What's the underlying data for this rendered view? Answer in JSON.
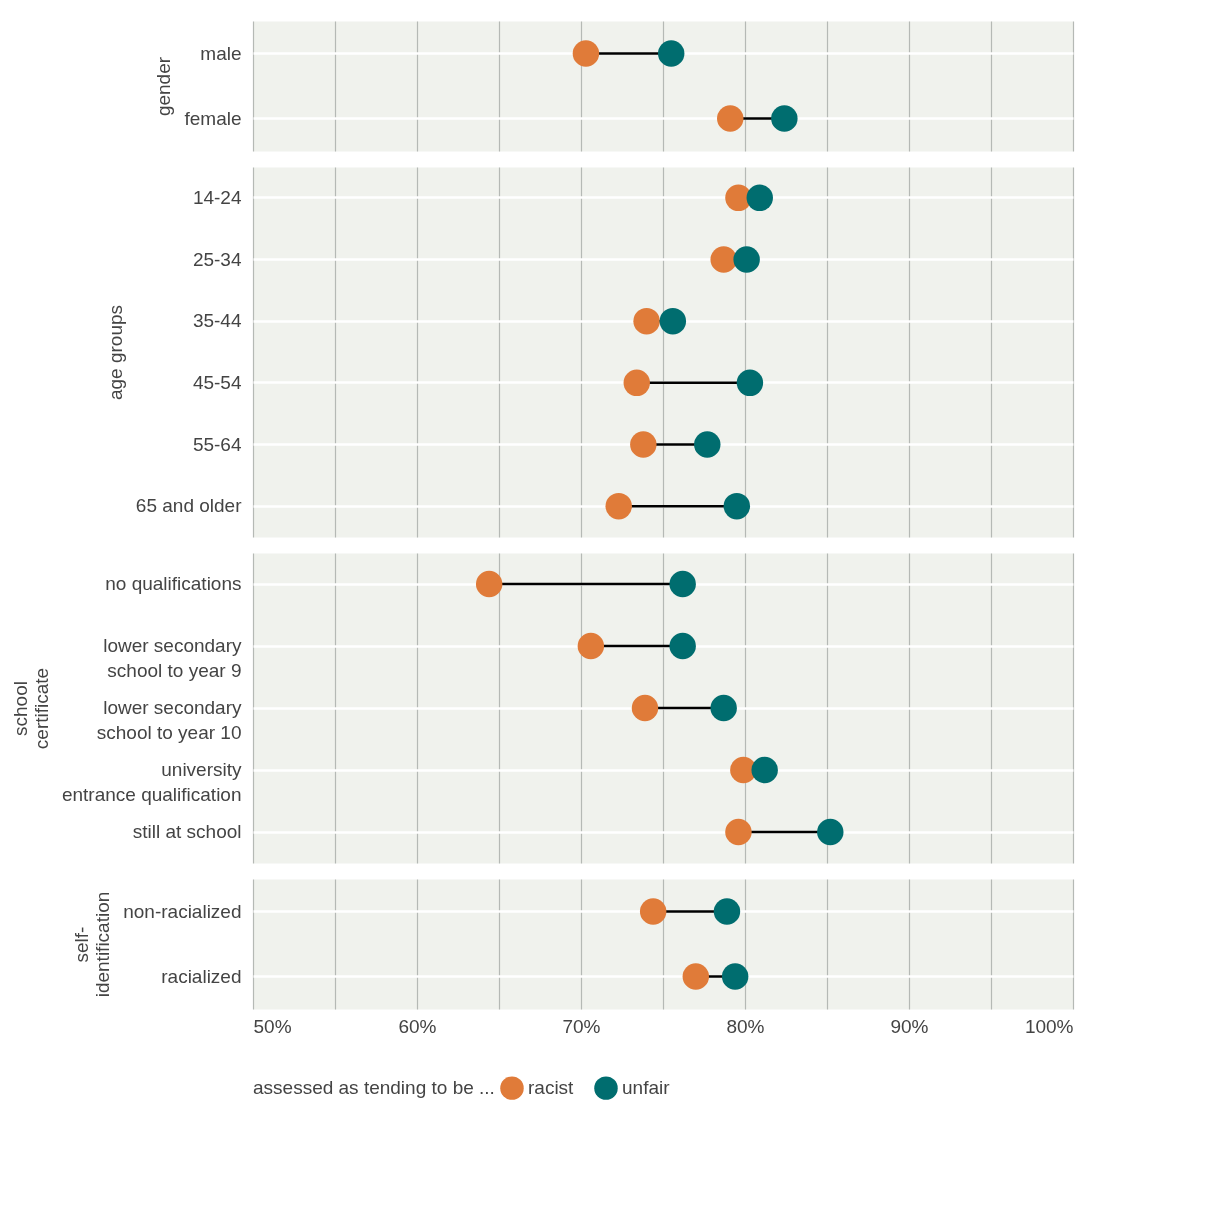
{
  "chart_data": [
    {
      "type": "scatter",
      "orientation": "horizontal",
      "ylabel": "gender",
      "categories": [
        "male",
        "female"
      ],
      "series": [
        {
          "color": "#e07b39",
          "values": [
            70.3,
            79.1
          ]
        },
        {
          "color": "#006d6f",
          "values": [
            75.5,
            82.4
          ]
        }
      ],
      "xlim": [
        50,
        100
      ],
      "xticks": [
        {
          "value": 50,
          "label": null
        },
        {
          "value": 55,
          "label": null
        },
        {
          "value": 60,
          "label": null
        },
        {
          "value": 65,
          "label": null
        },
        {
          "value": 70,
          "label": null
        },
        {
          "value": 75,
          "label": null
        },
        {
          "value": 80,
          "label": null
        },
        {
          "value": 85,
          "label": null
        },
        {
          "value": 90,
          "label": null
        },
        {
          "value": 95,
          "label": null
        },
        {
          "value": 100,
          "label": null
        }
      ],
      "grid": true,
      "tick_labels": "y",
      "legend": false
    },
    {
      "type": "scatter",
      "orientation": "horizontal",
      "ylabel": "age groups",
      "categories": [
        "14-24",
        "25-34",
        "35-44",
        "45-54",
        "55-64",
        "65 and older"
      ],
      "series": [
        {
          "color": "#e07b39",
          "values": [
            79.6,
            78.7,
            74.0,
            73.4,
            73.8,
            72.3
          ]
        },
        {
          "color": "#006d6f",
          "values": [
            80.9,
            80.1,
            75.6,
            80.3,
            77.7,
            79.5
          ]
        }
      ],
      "xlim": [
        50,
        100
      ],
      "xticks": [
        {
          "value": 50,
          "label": null
        },
        {
          "value": 55,
          "label": null
        },
        {
          "value": 60,
          "label": null
        },
        {
          "value": 65,
          "label": null
        },
        {
          "value": 70,
          "label": null
        },
        {
          "value": 75,
          "label": null
        },
        {
          "value": 80,
          "label": null
        },
        {
          "value": 85,
          "label": null
        },
        {
          "value": 90,
          "label": null
        },
        {
          "value": 95,
          "label": null
        },
        {
          "value": 100,
          "label": null
        }
      ],
      "grid": true,
      "tick_labels": "y",
      "legend": false
    },
    {
      "type": "scatter",
      "orientation": "horizontal",
      "ylabel": "school\ncertificate",
      "categories": [
        "no qualifications",
        "lower secondary\nschool to year 9",
        "lower secondary\nschool to year 10",
        "university\nentrance qualification",
        "still at school"
      ],
      "series": [
        {
          "color": "#e07b39",
          "values": [
            64.4,
            70.6,
            73.9,
            79.9,
            79.6
          ]
        },
        {
          "color": "#006d6f",
          "values": [
            76.2,
            76.2,
            78.7,
            81.2,
            85.2
          ]
        }
      ],
      "xlim": [
        50,
        100
      ],
      "xticks": [
        {
          "value": 50,
          "label": null
        },
        {
          "value": 55,
          "label": null
        },
        {
          "value": 60,
          "label": null
        },
        {
          "value": 65,
          "label": null
        },
        {
          "value": 70,
          "label": null
        },
        {
          "value": 75,
          "label": null
        },
        {
          "value": 80,
          "label": null
        },
        {
          "value": 85,
          "label": null
        },
        {
          "value": 90,
          "label": null
        },
        {
          "value": 95,
          "label": null
        },
        {
          "value": 100,
          "label": null
        }
      ],
      "grid": true,
      "tick_labels": "y",
      "legend": false
    },
    {
      "type": "scatter",
      "orientation": "horizontal",
      "ylabel": "self-\nidentification",
      "categories": [
        "non-racialized",
        "racialized"
      ],
      "series": [
        {
          "name": "racist",
          "color": "#e07b39",
          "values": [
            74.4,
            77.0
          ]
        },
        {
          "name": "unfair",
          "color": "#006d6f",
          "values": [
            78.9,
            79.4
          ]
        }
      ],
      "xlim": [
        50,
        100
      ],
      "xticks": [
        {
          "value": 50,
          "label": "50%"
        },
        {
          "value": 55,
          "label": null
        },
        {
          "value": 60,
          "label": "60%"
        },
        {
          "value": 65,
          "label": null
        },
        {
          "value": 70,
          "label": "70%"
        },
        {
          "value": 75,
          "label": null
        },
        {
          "value": 80,
          "label": "80%"
        },
        {
          "value": 85,
          "label": null
        },
        {
          "value": 90,
          "label": "90%"
        },
        {
          "value": 95,
          "label": null
        },
        {
          "value": 100,
          "label": "100%"
        }
      ],
      "grid": true,
      "legend": "bottom",
      "legend_title": "assessed as tending to be ..."
    }
  ]
}
